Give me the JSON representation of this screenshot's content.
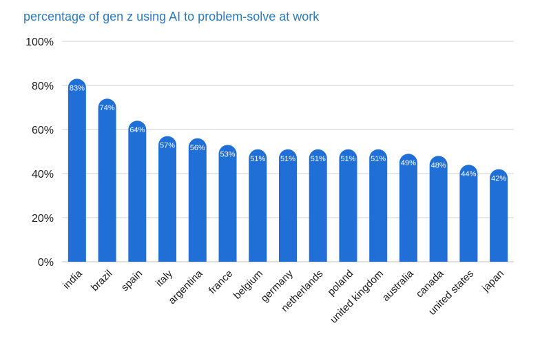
{
  "chart_data": {
    "type": "bar",
    "title": "percentage of gen z using AI to problem-solve at work",
    "xlabel": "",
    "ylabel": "",
    "ylim": [
      0,
      100
    ],
    "yticks": [
      "0%",
      "20%",
      "40%",
      "60%",
      "80%",
      "100%"
    ],
    "grid": true,
    "categories": [
      "india",
      "brazil",
      "spain",
      "italy",
      "argentina",
      "france",
      "belgium",
      "germany",
      "netherlands",
      "poland",
      "united kingdom",
      "australia",
      "canada",
      "united states",
      "japan"
    ],
    "values": [
      83,
      74,
      64,
      57,
      56,
      53,
      51,
      51,
      51,
      51,
      51,
      49,
      48,
      44,
      42
    ],
    "data_labels": [
      "83%",
      "74%",
      "64%",
      "57%",
      "56%",
      "53%",
      "51%",
      "51%",
      "51%",
      "51%",
      "51%",
      "49%",
      "48%",
      "44%",
      "42%"
    ],
    "bar_color": "#1f6fd6",
    "title_color": "#2b7bbf"
  }
}
